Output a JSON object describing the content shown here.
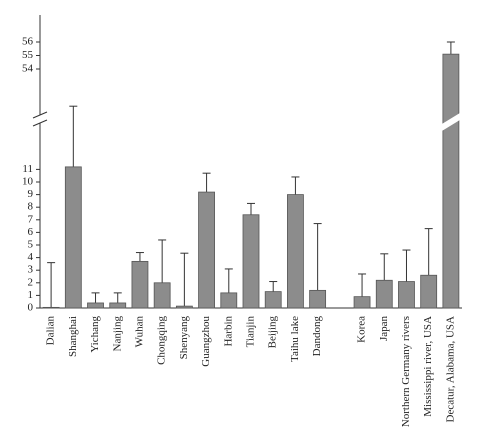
{
  "chart_data": {
    "type": "bar",
    "categories": [
      "Dalian",
      "Shanghai",
      "Yichang",
      "Nanjing",
      "Wuhan",
      "Chongqing",
      "Shenyang",
      "Guangzhou",
      "Harbin",
      "Tianjin",
      "Beijing",
      "Taihu lake",
      "Dandong",
      null,
      "Korea",
      "Japan",
      "Northern Germany rivers",
      "Mississippi river, USA",
      "Decatur, Alabama, USA"
    ],
    "values": [
      0.05,
      11.2,
      0.4,
      0.4,
      3.7,
      2.0,
      0.15,
      9.2,
      1.2,
      7.4,
      1.3,
      9.0,
      1.4,
      null,
      0.9,
      2.2,
      2.1,
      2.6,
      55.1
    ],
    "errors": [
      3.55,
      5.5,
      0.8,
      0.8,
      0.7,
      3.4,
      4.2,
      1.5,
      1.9,
      0.9,
      0.8,
      1.4,
      5.3,
      null,
      1.8,
      2.1,
      2.5,
      3.7,
      0.9
    ],
    "color": "#8c8c8c",
    "ylim": [
      0,
      58
    ],
    "ybreak": [
      16,
      52
    ],
    "yticks": [
      0,
      1,
      2,
      3,
      4,
      5,
      6,
      7,
      8,
      9,
      10,
      11,
      54,
      55,
      56
    ]
  }
}
